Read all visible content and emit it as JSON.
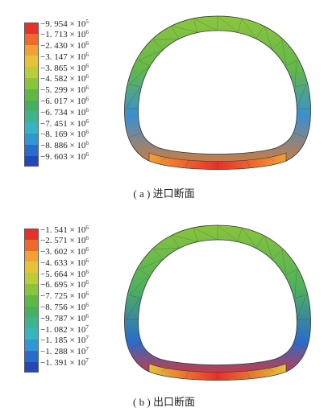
{
  "panel_a": {
    "caption": "( a ) 进口断面",
    "legend": [
      {
        "label": "−9. 954 × 10",
        "exp": "5",
        "color": "#e8302a"
      },
      {
        "label": "−1. 713 × 10",
        "exp": "6",
        "color": "#ee6a2c"
      },
      {
        "label": "−2. 430 × 10",
        "exp": "6",
        "color": "#f2a033"
      },
      {
        "label": "−3. 147 × 10",
        "exp": "6",
        "color": "#e6c23a"
      },
      {
        "label": "−3. 865 × 10",
        "exp": "6",
        "color": "#b9cc3a"
      },
      {
        "label": "−4. 582 × 10",
        "exp": "6",
        "color": "#88c43c"
      },
      {
        "label": "−5. 299 × 10",
        "exp": "6",
        "color": "#5fb844"
      },
      {
        "label": "−6. 017 × 10",
        "exp": "6",
        "color": "#46b060"
      },
      {
        "label": "−6. 734 × 10",
        "exp": "6",
        "color": "#3cb48e"
      },
      {
        "label": "−7. 451 × 10",
        "exp": "6",
        "color": "#36b4c2"
      },
      {
        "label": "−8. 169 × 10",
        "exp": "6",
        "color": "#2f98d4"
      },
      {
        "label": "−8. 886 × 10",
        "exp": "6",
        "color": "#2a6ccc"
      },
      {
        "label": "−9. 603 × 10",
        "exp": "6",
        "color": "#2448b8"
      }
    ]
  },
  "panel_b": {
    "caption": "( b ) 出口断面",
    "legend": [
      {
        "label": "−1. 541 × 10",
        "exp": "6",
        "color": "#e8302a"
      },
      {
        "label": "−2. 571 × 10",
        "exp": "6",
        "color": "#ee6a2c"
      },
      {
        "label": "−3. 602 × 10",
        "exp": "6",
        "color": "#f2a033"
      },
      {
        "label": "−4. 633 × 10",
        "exp": "6",
        "color": "#e6c23a"
      },
      {
        "label": "−5. 664 × 10",
        "exp": "6",
        "color": "#b9cc3a"
      },
      {
        "label": "−6. 695 × 10",
        "exp": "6",
        "color": "#88c43c"
      },
      {
        "label": "−7. 725 × 10",
        "exp": "6",
        "color": "#5fb844"
      },
      {
        "label": "−8. 756 × 10",
        "exp": "6",
        "color": "#46b060"
      },
      {
        "label": "−9. 787 × 10",
        "exp": "6",
        "color": "#3cb48e"
      },
      {
        "label": "−1. 082 × 10",
        "exp": "7",
        "color": "#36b4c2"
      },
      {
        "label": "−1. 185 × 10",
        "exp": "7",
        "color": "#2f98d4"
      },
      {
        "label": "−1. 288 × 10",
        "exp": "7",
        "color": "#2a6ccc"
      },
      {
        "label": "−1. 391 × 10",
        "exp": "7",
        "color": "#2448b8"
      }
    ]
  }
}
